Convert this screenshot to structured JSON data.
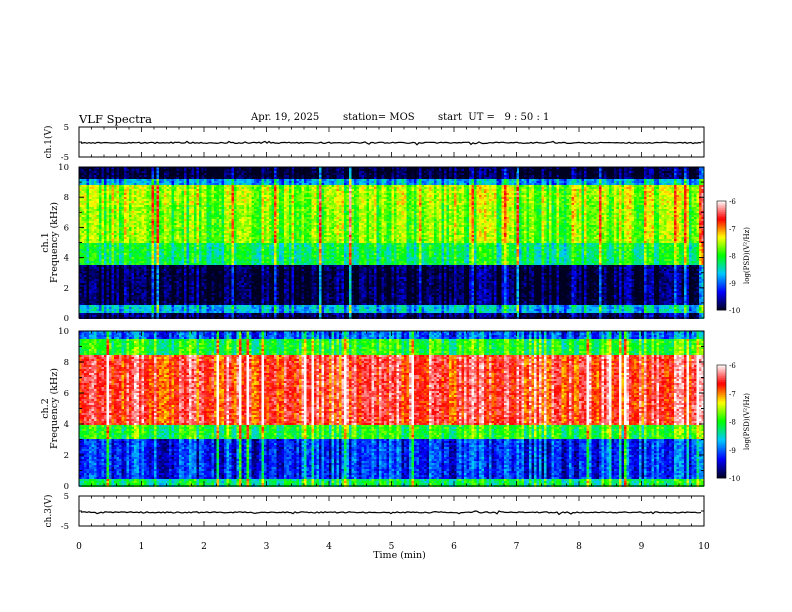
{
  "header": {
    "title": "VLF Spectra",
    "date": "Apr. 19, 2025",
    "station": "station= MOS",
    "start_ut": "start  UT =   9 : 50 : 1"
  },
  "chart_data": [
    {
      "type": "line",
      "ylabel": "ch.1(V)",
      "ylim": [
        -5,
        5
      ],
      "yticks": [
        "5",
        "-5"
      ],
      "note": "flat trace near 0 V"
    },
    {
      "type": "heatmap",
      "ylabel": "ch.1\nFrequency (kHz)",
      "ylim": [
        0,
        10
      ],
      "yticks": [
        "0",
        "2",
        "4",
        "6",
        "8",
        "10"
      ],
      "colorbar": {
        "label": "log(PSD)(V²/Hz)",
        "ticks": [
          "-6",
          "-7",
          "-8",
          "-9",
          "-10"
        ],
        "range": [
          -10,
          -6
        ]
      },
      "bands_khz": [
        {
          "from": 0.0,
          "to": 0.3,
          "level": -9.8
        },
        {
          "from": 0.3,
          "to": 0.8,
          "level": -8.7
        },
        {
          "from": 0.8,
          "to": 3.5,
          "level": -9.9
        },
        {
          "from": 3.5,
          "to": 5.0,
          "level": -8.2
        },
        {
          "from": 5.0,
          "to": 7.5,
          "level": -7.7
        },
        {
          "from": 7.5,
          "to": 8.8,
          "level": -7.6
        },
        {
          "from": 8.8,
          "to": 9.2,
          "level": -8.8
        },
        {
          "from": 9.2,
          "to": 10.0,
          "level": -10.0
        }
      ]
    },
    {
      "type": "heatmap",
      "ylabel": "ch.2\nFrequency (kHz)",
      "ylim": [
        0,
        10
      ],
      "yticks": [
        "0",
        "2",
        "4",
        "6",
        "8",
        "10"
      ],
      "colorbar": {
        "label": "log(PSD)(V²/Hz)",
        "ticks": [
          "-6",
          "-7",
          "-8",
          "-9",
          "-10"
        ],
        "range": [
          -10,
          -6
        ]
      },
      "bands_khz": [
        {
          "from": 0.0,
          "to": 0.5,
          "level": -8.2
        },
        {
          "from": 0.5,
          "to": 3.0,
          "level": -9.2
        },
        {
          "from": 3.0,
          "to": 4.0,
          "level": -8.0
        },
        {
          "from": 4.0,
          "to": 8.5,
          "level": -6.6
        },
        {
          "from": 8.5,
          "to": 9.5,
          "level": -8.0
        },
        {
          "from": 9.5,
          "to": 10.0,
          "level": -9.0
        }
      ]
    },
    {
      "type": "line",
      "ylabel": "ch.3(V)",
      "ylim": [
        -5,
        5
      ],
      "yticks": [
        "5",
        "-5"
      ],
      "note": "flat trace near 0 V"
    }
  ],
  "xaxis": {
    "label": "Time (min)",
    "range": [
      0,
      10
    ],
    "ticks": [
      "0",
      "1",
      "2",
      "3",
      "4",
      "5",
      "6",
      "7",
      "8",
      "9",
      "10"
    ]
  },
  "colors": {
    "background": "#ffffff",
    "axis": "#000000",
    "colormap": [
      "#000020",
      "#0000ff",
      "#00c8ff",
      "#00ff00",
      "#ffff00",
      "#ff0000",
      "#ffffff"
    ]
  }
}
